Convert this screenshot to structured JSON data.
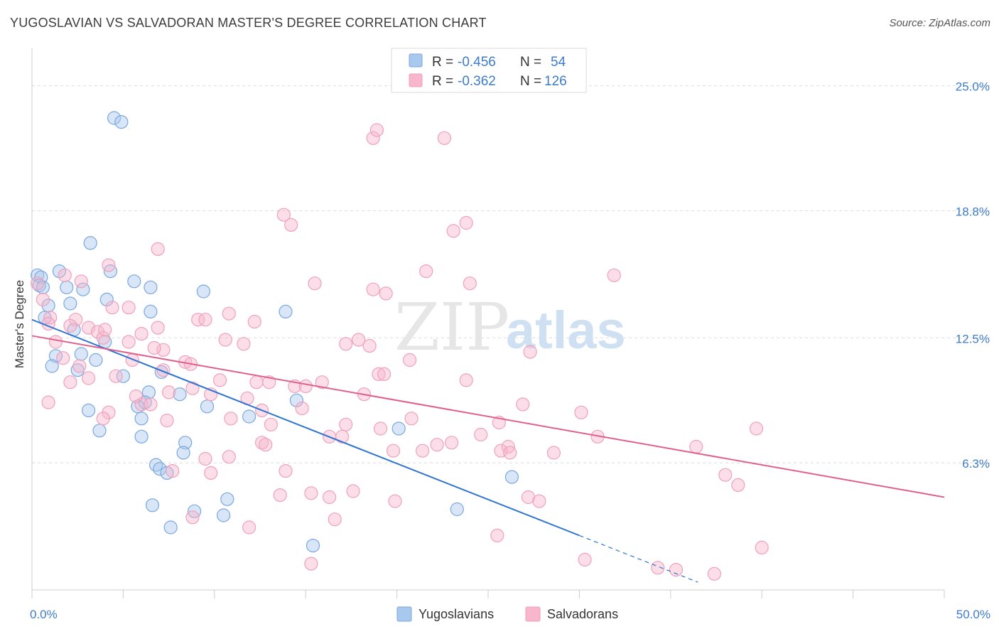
{
  "title": "YUGOSLAVIAN VS SALVADORAN MASTER'S DEGREE CORRELATION CHART",
  "source": "Source: ZipAtlas.com",
  "watermark": {
    "zip": "ZIP",
    "atlas": "atlas"
  },
  "chart_data": {
    "type": "scatter",
    "ylabel": "Master's Degree",
    "xlim": [
      0,
      50
    ],
    "ylim": [
      0,
      26.5
    ],
    "x_tick_labels": [
      {
        "value": 0,
        "label": "0.0%"
      },
      {
        "value": 50,
        "label": "50.0%"
      }
    ],
    "y_tick_labels": [
      {
        "value": 6.3,
        "label": "6.3%"
      },
      {
        "value": 12.5,
        "label": "12.5%"
      },
      {
        "value": 18.8,
        "label": "18.8%"
      },
      {
        "value": 25.0,
        "label": "25.0%"
      }
    ],
    "grid": "horizontal dashed",
    "legend_position": "top-center",
    "legend": [
      {
        "r_label": "R =",
        "r_value": "-0.456",
        "n_label": "N =",
        "n_value": "54",
        "color": "#a9c8ee"
      },
      {
        "r_label": "R =",
        "r_value": "-0.362",
        "n_label": "N =",
        "n_value": "126",
        "color": "#f7b6cb"
      }
    ],
    "series": [
      {
        "name": "Yugoslavians",
        "color": "#7aa7e0",
        "fill": "#a9c8ee",
        "line_color": "#2f74d0",
        "trend": {
          "x0": 0,
          "y0": 13.4,
          "x1": 30,
          "y1": 2.7,
          "dash_to_x": 36.5
        },
        "points": [
          [
            0.3,
            15.6
          ],
          [
            0.5,
            15.5
          ],
          [
            0.4,
            15.1
          ],
          [
            0.6,
            15.0
          ],
          [
            1.5,
            15.8
          ],
          [
            3.2,
            17.2
          ],
          [
            4.3,
            15.8
          ],
          [
            5.6,
            15.3
          ],
          [
            1.9,
            15.0
          ],
          [
            2.8,
            14.9
          ],
          [
            6.5,
            15.0
          ],
          [
            9.4,
            14.8
          ],
          [
            4.1,
            14.4
          ],
          [
            0.9,
            14.1
          ],
          [
            2.1,
            14.2
          ],
          [
            6.5,
            13.8
          ],
          [
            13.9,
            13.8
          ],
          [
            0.7,
            13.5
          ],
          [
            2.3,
            12.9
          ],
          [
            4.0,
            12.3
          ],
          [
            1.3,
            11.6
          ],
          [
            2.7,
            11.7
          ],
          [
            3.5,
            11.4
          ],
          [
            1.1,
            11.1
          ],
          [
            2.5,
            10.9
          ],
          [
            7.1,
            10.8
          ],
          [
            5.0,
            10.6
          ],
          [
            8.1,
            9.7
          ],
          [
            6.4,
            9.8
          ],
          [
            6.2,
            9.3
          ],
          [
            5.8,
            9.1
          ],
          [
            9.6,
            9.1
          ],
          [
            14.5,
            9.4
          ],
          [
            3.1,
            8.9
          ],
          [
            11.9,
            8.6
          ],
          [
            6.0,
            8.5
          ],
          [
            3.7,
            7.9
          ],
          [
            6.0,
            7.6
          ],
          [
            20.1,
            8.0
          ],
          [
            8.4,
            7.3
          ],
          [
            8.3,
            6.8
          ],
          [
            6.8,
            6.2
          ],
          [
            7.0,
            6.0
          ],
          [
            7.4,
            5.8
          ],
          [
            26.3,
            5.6
          ],
          [
            6.6,
            4.2
          ],
          [
            8.9,
            3.9
          ],
          [
            10.5,
            3.7
          ],
          [
            7.6,
            3.1
          ],
          [
            4.5,
            23.4
          ],
          [
            4.9,
            23.2
          ],
          [
            15.4,
            2.2
          ],
          [
            23.3,
            4.0
          ],
          [
            10.7,
            4.5
          ]
        ]
      },
      {
        "name": "Salvadorans",
        "color": "#f0a0bb",
        "fill": "#f7b6cb",
        "line_color": "#e0608d",
        "trend": {
          "x0": 0,
          "y0": 12.6,
          "x1": 50,
          "y1": 4.6
        },
        "points": [
          [
            0.3,
            15.2
          ],
          [
            0.6,
            14.4
          ],
          [
            1.8,
            15.6
          ],
          [
            2.7,
            15.3
          ],
          [
            4.2,
            16.1
          ],
          [
            6.9,
            16.9
          ],
          [
            13.8,
            18.6
          ],
          [
            14.2,
            18.1
          ],
          [
            23.1,
            17.8
          ],
          [
            23.8,
            18.2
          ],
          [
            31.9,
            15.6
          ],
          [
            21.6,
            15.8
          ],
          [
            15.5,
            15.2
          ],
          [
            18.7,
            14.9
          ],
          [
            19.4,
            14.7
          ],
          [
            24.0,
            15.2
          ],
          [
            4.4,
            14.0
          ],
          [
            5.3,
            14.0
          ],
          [
            1.0,
            13.5
          ],
          [
            2.4,
            13.4
          ],
          [
            3.1,
            13.0
          ],
          [
            6.9,
            13.0
          ],
          [
            9.1,
            13.4
          ],
          [
            9.5,
            13.4
          ],
          [
            10.8,
            13.7
          ],
          [
            12.2,
            13.3
          ],
          [
            0.9,
            13.2
          ],
          [
            1.3,
            12.3
          ],
          [
            2.1,
            13.1
          ],
          [
            3.6,
            12.8
          ],
          [
            3.9,
            12.5
          ],
          [
            4.0,
            12.9
          ],
          [
            7.2,
            11.9
          ],
          [
            6.7,
            12.0
          ],
          [
            5.3,
            12.3
          ],
          [
            6.0,
            12.7
          ],
          [
            10.6,
            12.4
          ],
          [
            11.6,
            12.2
          ],
          [
            17.2,
            12.2
          ],
          [
            17.9,
            12.4
          ],
          [
            18.5,
            12.1
          ],
          [
            2.6,
            11.1
          ],
          [
            1.7,
            11.5
          ],
          [
            5.5,
            11.4
          ],
          [
            8.4,
            11.3
          ],
          [
            8.7,
            11.2
          ],
          [
            20.7,
            11.4
          ],
          [
            27.3,
            11.8
          ],
          [
            2.1,
            10.3
          ],
          [
            3.1,
            10.5
          ],
          [
            4.6,
            10.6
          ],
          [
            7.2,
            10.9
          ],
          [
            10.3,
            10.4
          ],
          [
            12.3,
            10.3
          ],
          [
            13.0,
            10.3
          ],
          [
            14.4,
            10.1
          ],
          [
            15.0,
            10.1
          ],
          [
            15.9,
            10.3
          ],
          [
            19.0,
            10.7
          ],
          [
            19.3,
            10.7
          ],
          [
            23.8,
            10.4
          ],
          [
            7.5,
            9.8
          ],
          [
            8.8,
            10.0
          ],
          [
            9.8,
            9.7
          ],
          [
            11.8,
            9.5
          ],
          [
            18.2,
            9.7
          ],
          [
            0.9,
            9.3
          ],
          [
            6.0,
            9.2
          ],
          [
            6.5,
            9.2
          ],
          [
            5.7,
            9.6
          ],
          [
            12.6,
            8.9
          ],
          [
            14.8,
            9.0
          ],
          [
            26.9,
            9.2
          ],
          [
            30.1,
            8.8
          ],
          [
            4.2,
            8.8
          ],
          [
            3.9,
            8.5
          ],
          [
            7.4,
            8.4
          ],
          [
            10.9,
            8.5
          ],
          [
            13.1,
            8.2
          ],
          [
            17.2,
            8.2
          ],
          [
            20.8,
            8.5
          ],
          [
            25.6,
            8.3
          ],
          [
            39.7,
            8.0
          ],
          [
            19.1,
            8.0
          ],
          [
            16.3,
            7.6
          ],
          [
            17.0,
            7.6
          ],
          [
            24.6,
            7.7
          ],
          [
            31.0,
            7.6
          ],
          [
            12.6,
            7.3
          ],
          [
            12.8,
            7.2
          ],
          [
            22.2,
            7.2
          ],
          [
            23.0,
            7.3
          ],
          [
            26.1,
            7.1
          ],
          [
            36.4,
            7.1
          ],
          [
            19.8,
            6.9
          ],
          [
            21.4,
            6.9
          ],
          [
            25.7,
            6.9
          ],
          [
            26.2,
            6.8
          ],
          [
            28.6,
            6.8
          ],
          [
            10.8,
            6.6
          ],
          [
            9.5,
            6.5
          ],
          [
            13.9,
            5.9
          ],
          [
            9.8,
            5.8
          ],
          [
            7.7,
            5.9
          ],
          [
            38.0,
            5.7
          ],
          [
            38.7,
            5.2
          ],
          [
            13.6,
            4.7
          ],
          [
            15.3,
            4.8
          ],
          [
            16.3,
            4.6
          ],
          [
            17.6,
            4.9
          ],
          [
            19.9,
            4.4
          ],
          [
            27.2,
            4.6
          ],
          [
            27.8,
            4.4
          ],
          [
            8.8,
            3.6
          ],
          [
            11.9,
            3.1
          ],
          [
            16.6,
            3.5
          ],
          [
            25.5,
            2.7
          ],
          [
            30.3,
            1.5
          ],
          [
            34.3,
            1.1
          ],
          [
            35.3,
            1.0
          ],
          [
            40.0,
            2.1
          ],
          [
            37.4,
            0.8
          ],
          [
            15.3,
            1.3
          ],
          [
            18.7,
            22.4
          ],
          [
            18.9,
            22.8
          ],
          [
            22.6,
            22.4
          ]
        ]
      }
    ]
  }
}
